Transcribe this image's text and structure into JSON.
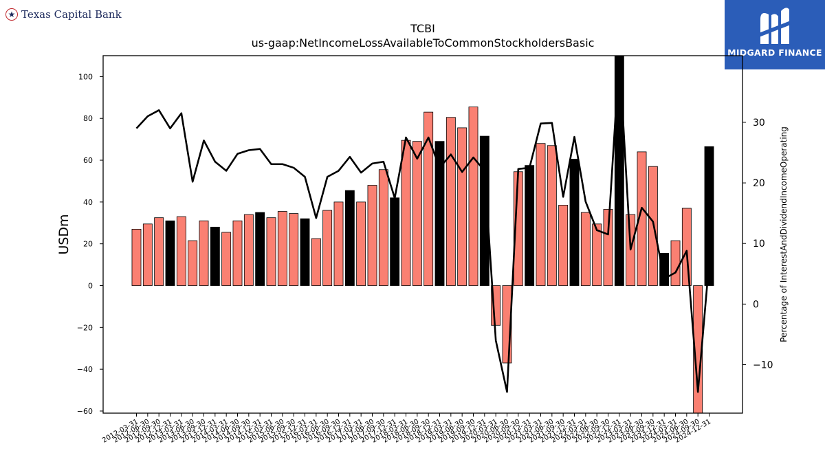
{
  "branding": {
    "left_logo_text": "Texas Capital Bank",
    "left_logo_icon": "star-in-circle-icon",
    "right_logo_text": "MIDGARD FINANCE",
    "right_logo_icon": "midgard-m-mark-icon",
    "right_logo_bg": "#2b5db8"
  },
  "chart_data": {
    "type": "bar",
    "title": "TCBI",
    "subtitle": "us-gaap:NetIncomeLossAvailableToCommonStockholdersBasic",
    "ylabel": "USDm",
    "y2label": "Percentage of InterestAndDividendIncomeOperating",
    "ylim": [
      -61,
      110
    ],
    "y2lim": [
      -18,
      41
    ],
    "yticks": [
      -60,
      -40,
      -20,
      0,
      20,
      40,
      60,
      80,
      100
    ],
    "y2ticks": [
      -10,
      0,
      10,
      20,
      30
    ],
    "colors": {
      "quarterly_bar": "#fa8072",
      "annual_bar": "#000000",
      "line": "#000000"
    },
    "categories": [
      "2012-03-31",
      "2012-06-30",
      "2012-09-30",
      "2012-12-31",
      "2013-03-31",
      "2013-06-30",
      "2013-09-30",
      "2013-12-31",
      "2014-03-31",
      "2014-06-30",
      "2014-09-30",
      "2014-12-31",
      "2015-03-31",
      "2015-06-30",
      "2015-09-30",
      "2015-12-31",
      "2016-03-31",
      "2016-06-30",
      "2016-09-30",
      "2016-12-31",
      "2017-03-31",
      "2017-06-30",
      "2017-09-30",
      "2017-12-31",
      "2018-03-31",
      "2018-06-30",
      "2018-09-30",
      "2018-12-31",
      "2019-03-31",
      "2019-06-30",
      "2019-09-30",
      "2019-12-31",
      "2020-03-31",
      "2020-06-30",
      "2020-09-30",
      "2020-12-31",
      "2021-03-31",
      "2021-06-30",
      "2021-09-30",
      "2021-12-31",
      "2022-03-31",
      "2022-06-30",
      "2022-09-30",
      "2022-12-31",
      "2023-03-31",
      "2023-06-30",
      "2023-09-30",
      "2023-12-31",
      "2024-03-31",
      "2024-06-30",
      "2024-09-30",
      "2024-12-31"
    ],
    "series": [
      {
        "kind": "bar",
        "values": [
          27,
          29.5,
          32.5,
          31,
          33,
          21.5,
          31,
          28,
          25.5,
          31,
          34,
          35,
          32.5,
          35.5,
          34.5,
          32,
          22.5,
          36,
          40,
          45.5,
          40,
          48,
          55.5,
          42,
          69.5,
          69,
          83,
          69,
          80.5,
          75.5,
          85.5,
          71.5,
          -19,
          -37,
          54.5,
          57.5,
          68,
          67,
          38.5,
          60.5,
          35,
          29.5,
          36.5,
          111,
          34,
          64,
          57,
          15.5,
          21.5,
          37,
          -61,
          66.5
        ],
        "annual": [
          false,
          false,
          false,
          true,
          false,
          false,
          false,
          true,
          false,
          false,
          false,
          true,
          false,
          false,
          false,
          true,
          false,
          false,
          false,
          true,
          false,
          false,
          false,
          true,
          false,
          false,
          false,
          true,
          false,
          false,
          false,
          true,
          false,
          false,
          false,
          true,
          false,
          false,
          false,
          true,
          false,
          false,
          false,
          true,
          false,
          false,
          false,
          true,
          false,
          false,
          false,
          true
        ]
      },
      {
        "kind": "line",
        "axis": "right",
        "values": [
          29,
          31,
          32,
          29,
          31.5,
          20.2,
          27,
          23.5,
          22,
          24.8,
          25.4,
          25.6,
          23.1,
          23.1,
          22.5,
          21,
          14.2,
          21,
          22,
          24.3,
          21.7,
          23.2,
          23.5,
          17.5,
          27.5,
          24,
          27.5,
          22.5,
          24.7,
          21.8,
          24.2,
          22,
          -6,
          -14.5,
          22.3,
          22.5,
          29.8,
          29.9,
          17.7,
          27.6,
          16.9,
          12.2,
          11.5,
          41,
          9,
          15.9,
          13.6,
          4.2,
          5.2,
          8.8,
          -14.5,
          7
        ]
      }
    ]
  }
}
